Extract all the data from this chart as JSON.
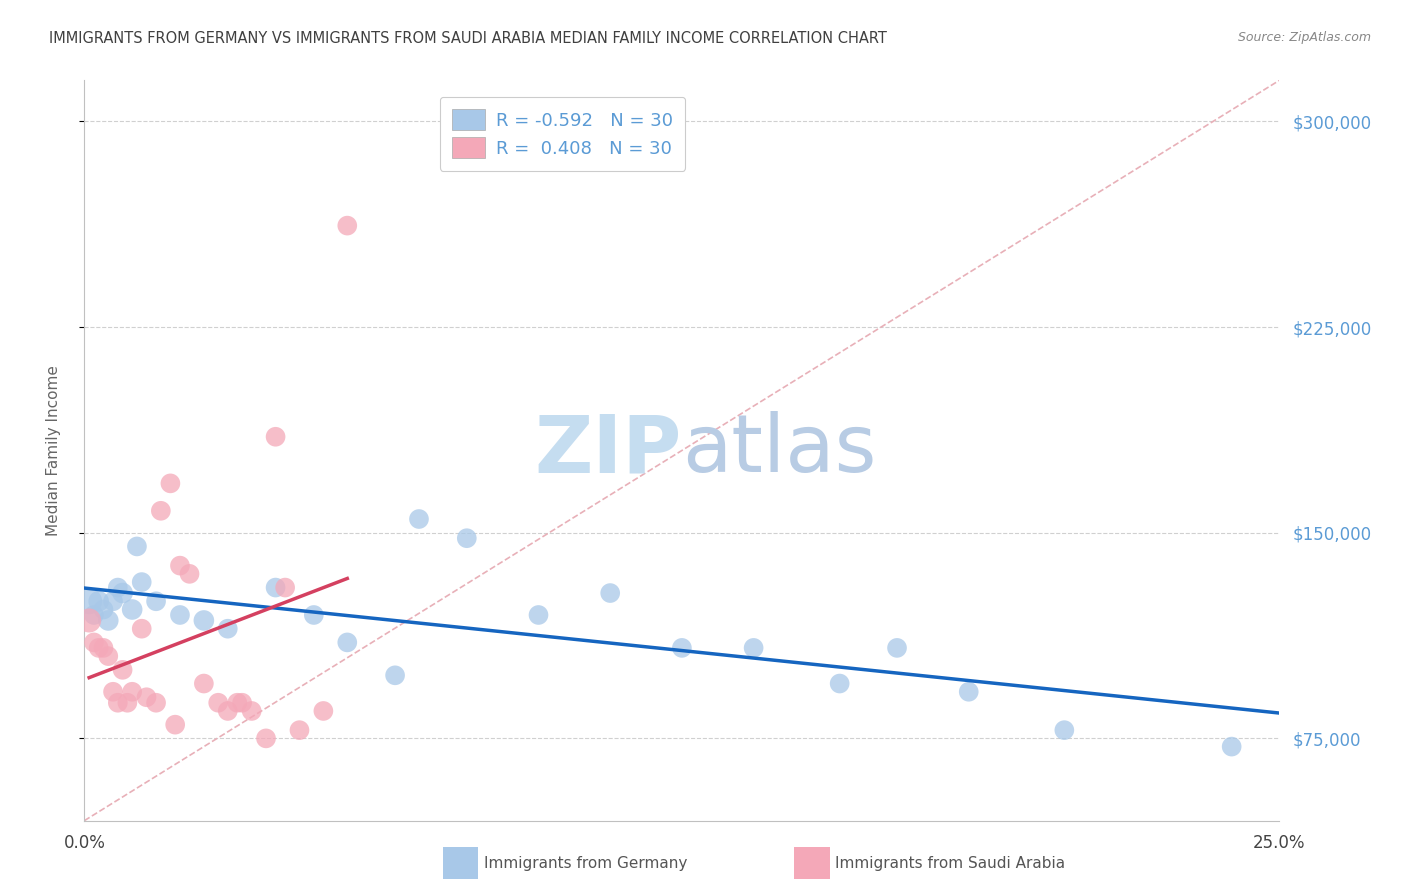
{
  "title": "IMMIGRANTS FROM GERMANY VS IMMIGRANTS FROM SAUDI ARABIA MEDIAN FAMILY INCOME CORRELATION CHART",
  "source": "Source: ZipAtlas.com",
  "ylabel": "Median Family Income",
  "watermark_zip": "ZIP",
  "watermark_atlas": "atlas",
  "xlim": [
    0.0,
    0.25
  ],
  "ylim": [
    45000,
    315000
  ],
  "yticks": [
    75000,
    150000,
    225000,
    300000
  ],
  "xticks": [
    0.0,
    0.05,
    0.1,
    0.15,
    0.2,
    0.25
  ],
  "xtick_labels": [
    "0.0%",
    "",
    "",
    "",
    "",
    "25.0%"
  ],
  "ytick_labels": [
    "$75,000",
    "$150,000",
    "$225,000",
    "$300,000"
  ],
  "germany_color": "#a8c8e8",
  "saudi_color": "#f4a8b8",
  "germany_label": "Immigrants from Germany",
  "saudi_label": "Immigrants from Saudi Arabia",
  "germany_R": -0.592,
  "saudi_R": 0.408,
  "germany_N": 30,
  "saudi_N": 30,
  "germany_x": [
    0.001,
    0.002,
    0.003,
    0.004,
    0.005,
    0.006,
    0.007,
    0.008,
    0.01,
    0.011,
    0.012,
    0.015,
    0.02,
    0.025,
    0.03,
    0.04,
    0.048,
    0.055,
    0.065,
    0.07,
    0.08,
    0.095,
    0.11,
    0.125,
    0.14,
    0.158,
    0.17,
    0.185,
    0.205,
    0.24
  ],
  "germany_y": [
    125000,
    120000,
    125000,
    122000,
    118000,
    125000,
    130000,
    128000,
    122000,
    145000,
    132000,
    125000,
    120000,
    118000,
    115000,
    130000,
    120000,
    110000,
    98000,
    155000,
    148000,
    120000,
    128000,
    108000,
    108000,
    95000,
    108000,
    92000,
    78000,
    72000
  ],
  "germany_size": [
    350,
    200,
    220,
    200,
    220,
    200,
    200,
    220,
    220,
    200,
    200,
    200,
    200,
    220,
    200,
    200,
    200,
    200,
    200,
    200,
    200,
    200,
    200,
    200,
    200,
    200,
    200,
    200,
    200,
    200
  ],
  "saudi_x": [
    0.001,
    0.002,
    0.003,
    0.004,
    0.005,
    0.006,
    0.007,
    0.008,
    0.009,
    0.01,
    0.012,
    0.013,
    0.015,
    0.016,
    0.018,
    0.019,
    0.02,
    0.022,
    0.025,
    0.028,
    0.03,
    0.032,
    0.033,
    0.035,
    0.038,
    0.04,
    0.042,
    0.045,
    0.05,
    0.055
  ],
  "saudi_y": [
    118000,
    110000,
    108000,
    108000,
    105000,
    92000,
    88000,
    100000,
    88000,
    92000,
    115000,
    90000,
    88000,
    158000,
    168000,
    80000,
    138000,
    135000,
    95000,
    88000,
    85000,
    88000,
    88000,
    85000,
    75000,
    185000,
    130000,
    78000,
    85000,
    262000
  ],
  "saudi_size": [
    300,
    200,
    200,
    200,
    200,
    200,
    200,
    200,
    200,
    200,
    200,
    200,
    200,
    200,
    200,
    200,
    200,
    200,
    200,
    200,
    200,
    200,
    200,
    200,
    200,
    200,
    200,
    200,
    200,
    200
  ],
  "line_color_germany": "#1565c0",
  "line_color_saudi": "#d44060",
  "grid_color": "#d0d0d0",
  "background_color": "#ffffff",
  "right_axis_color": "#5b9bd5",
  "title_color": "#404040",
  "source_color": "#888888",
  "legend_border_color": "#cccccc",
  "spine_color": "#c0c0c0"
}
